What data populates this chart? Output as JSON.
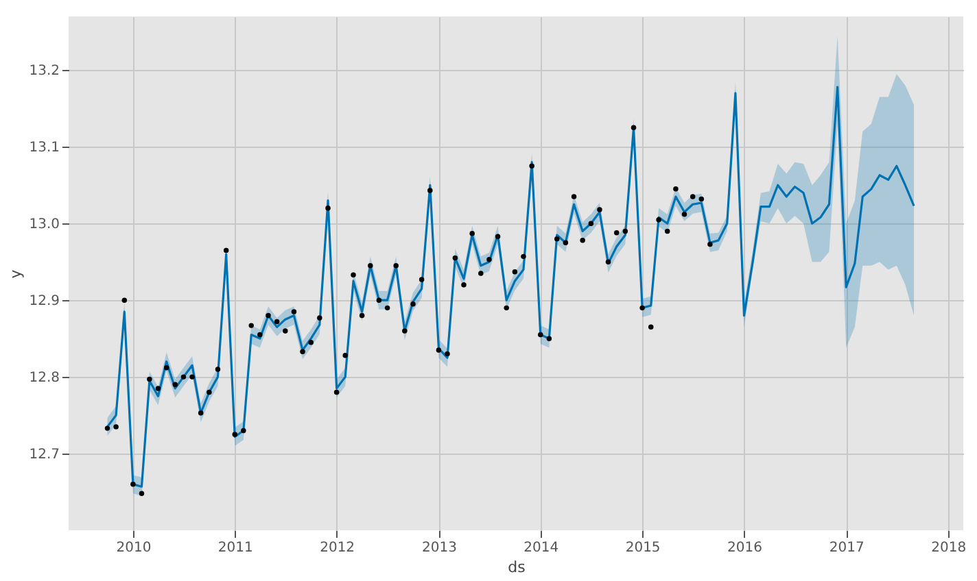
{
  "chart_data": {
    "type": "line",
    "xlabel": "ds",
    "ylabel": "y",
    "x": [
      "2009-10",
      "2009-11",
      "2009-12",
      "2010-01",
      "2010-02",
      "2010-03",
      "2010-04",
      "2010-05",
      "2010-06",
      "2010-07",
      "2010-08",
      "2010-09",
      "2010-10",
      "2010-11",
      "2010-12",
      "2011-01",
      "2011-02",
      "2011-03",
      "2011-04",
      "2011-05",
      "2011-06",
      "2011-07",
      "2011-08",
      "2011-09",
      "2011-10",
      "2011-11",
      "2011-12",
      "2012-01",
      "2012-02",
      "2012-03",
      "2012-04",
      "2012-05",
      "2012-06",
      "2012-07",
      "2012-08",
      "2012-09",
      "2012-10",
      "2012-11",
      "2012-12",
      "2013-01",
      "2013-02",
      "2013-03",
      "2013-04",
      "2013-05",
      "2013-06",
      "2013-07",
      "2013-08",
      "2013-09",
      "2013-10",
      "2013-11",
      "2013-12",
      "2014-01",
      "2014-02",
      "2014-03",
      "2014-04",
      "2014-05",
      "2014-06",
      "2014-07",
      "2014-08",
      "2014-09",
      "2014-10",
      "2014-11",
      "2014-12",
      "2015-01",
      "2015-02",
      "2015-03",
      "2015-04",
      "2015-05",
      "2015-06",
      "2015-07",
      "2015-08",
      "2015-09",
      "2015-10",
      "2015-11",
      "2015-12",
      "2016-01",
      "2016-02",
      "2016-03",
      "2016-04",
      "2016-05",
      "2016-06",
      "2016-07",
      "2016-08",
      "2016-09",
      "2016-10",
      "2016-11",
      "2016-12",
      "2017-01",
      "2017-02",
      "2017-03",
      "2017-04",
      "2017-05",
      "2017-06",
      "2017-07",
      "2017-08",
      "2017-09"
    ],
    "series": [
      {
        "color": "#0072b2",
        "values": [
          12.735,
          12.75,
          12.885,
          12.66,
          12.657,
          12.795,
          12.775,
          12.82,
          12.785,
          12.8,
          12.815,
          12.753,
          12.78,
          12.8,
          12.96,
          12.722,
          12.73,
          12.855,
          12.85,
          12.88,
          12.865,
          12.875,
          12.88,
          12.835,
          12.85,
          12.868,
          13.03,
          12.785,
          12.8,
          12.925,
          12.885,
          12.945,
          12.9,
          12.9,
          12.945,
          12.86,
          12.898,
          12.915,
          13.05,
          12.837,
          12.825,
          12.955,
          12.928,
          12.985,
          12.945,
          12.95,
          12.985,
          12.9,
          12.925,
          12.94,
          13.08,
          12.855,
          12.85,
          12.985,
          12.975,
          13.025,
          12.99,
          13.0,
          13.015,
          12.948,
          12.97,
          12.985,
          13.125,
          12.89,
          12.893,
          13.008,
          13.0,
          13.035,
          13.015,
          13.025,
          13.027,
          12.975,
          12.978,
          13.0,
          13.17,
          12.88,
          12.95,
          13.022,
          13.022,
          13.05,
          13.035,
          13.048,
          13.04,
          13.0,
          13.008,
          13.025,
          13.178,
          12.917,
          12.948,
          13.035,
          13.045,
          13.063,
          13.057,
          13.075,
          13.05,
          13.023
        ],
        "lower": [
          12.723,
          12.738,
          12.873,
          12.648,
          12.645,
          12.783,
          12.763,
          12.808,
          12.773,
          12.788,
          12.803,
          12.741,
          12.768,
          12.788,
          12.948,
          12.71,
          12.718,
          12.843,
          12.838,
          12.868,
          12.853,
          12.863,
          12.868,
          12.823,
          12.838,
          12.856,
          13.018,
          12.773,
          12.788,
          12.913,
          12.873,
          12.933,
          12.888,
          12.888,
          12.933,
          12.848,
          12.886,
          12.903,
          13.038,
          12.825,
          12.813,
          12.943,
          12.916,
          12.973,
          12.933,
          12.938,
          12.973,
          12.888,
          12.913,
          12.928,
          13.068,
          12.843,
          12.838,
          12.973,
          12.963,
          13.013,
          12.978,
          12.988,
          13.003,
          12.936,
          12.958,
          12.973,
          13.113,
          12.878,
          12.881,
          12.996,
          12.988,
          13.023,
          13.003,
          13.013,
          13.015,
          12.963,
          12.965,
          12.99,
          13.155,
          12.865,
          12.94,
          13.003,
          13.0,
          13.02,
          13.0,
          13.01,
          13.0,
          12.95,
          12.95,
          12.963,
          13.13,
          12.838,
          12.865,
          12.945,
          12.945,
          12.95,
          12.94,
          12.945,
          12.92,
          12.88
        ],
        "upper": [
          12.747,
          12.762,
          12.897,
          12.672,
          12.669,
          12.807,
          12.787,
          12.832,
          12.797,
          12.812,
          12.827,
          12.765,
          12.792,
          12.812,
          12.972,
          12.734,
          12.742,
          12.867,
          12.862,
          12.892,
          12.877,
          12.887,
          12.892,
          12.847,
          12.862,
          12.88,
          13.042,
          12.797,
          12.812,
          12.937,
          12.897,
          12.957,
          12.912,
          12.912,
          12.957,
          12.872,
          12.91,
          12.927,
          13.062,
          12.849,
          12.837,
          12.967,
          12.94,
          12.997,
          12.957,
          12.962,
          12.997,
          12.912,
          12.937,
          12.952,
          13.092,
          12.867,
          12.862,
          12.997,
          12.987,
          13.037,
          13.002,
          13.012,
          13.027,
          12.96,
          12.982,
          12.997,
          13.137,
          12.902,
          12.905,
          13.02,
          13.012,
          13.047,
          13.027,
          13.037,
          13.039,
          12.987,
          12.988,
          13.01,
          13.185,
          12.895,
          12.965,
          13.04,
          13.042,
          13.078,
          13.065,
          13.08,
          13.078,
          13.05,
          13.063,
          13.08,
          13.245,
          13.0,
          13.03,
          13.12,
          13.13,
          13.165,
          13.165,
          13.195,
          13.18,
          13.155
        ]
      },
      {
        "type": "scatter",
        "color": "#000000",
        "marker": "circle",
        "values": [
          12.733,
          12.735,
          12.9,
          12.66,
          12.648,
          12.797,
          12.785,
          12.812,
          12.79,
          12.8,
          12.8,
          12.753,
          12.78,
          12.81,
          12.965,
          12.725,
          12.73,
          12.867,
          12.855,
          12.88,
          12.872,
          12.86,
          12.885,
          12.833,
          12.845,
          12.877,
          13.02,
          12.78,
          12.828,
          12.933,
          12.88,
          12.945,
          12.9,
          12.89,
          12.945,
          12.86,
          12.895,
          12.927,
          13.043,
          12.835,
          12.83,
          12.955,
          12.92,
          12.987,
          12.935,
          12.953,
          12.983,
          12.89,
          12.937,
          12.957,
          13.075,
          12.855,
          12.85,
          12.98,
          12.975,
          13.035,
          12.978,
          13.0,
          13.018,
          12.95,
          12.988,
          12.99,
          13.125,
          12.89,
          12.865,
          13.005,
          12.99,
          13.045,
          13.012,
          13.035,
          13.032,
          12.973,
          null,
          null,
          null,
          null,
          null,
          null,
          null,
          null,
          null,
          null,
          null,
          null,
          null,
          null,
          null,
          null,
          null,
          null,
          null,
          null,
          null,
          null,
          null,
          null
        ]
      }
    ],
    "xlim": [
      "2009-05-15",
      "2018-02-25"
    ],
    "xticks": [
      {
        "value": "2010",
        "label": "2010"
      },
      {
        "value": "2011",
        "label": "2011"
      },
      {
        "value": "2012",
        "label": "2012"
      },
      {
        "value": "2013",
        "label": "2013"
      },
      {
        "value": "2014",
        "label": "2014"
      },
      {
        "value": "2015",
        "label": "2015"
      },
      {
        "value": "2016",
        "label": "2016"
      },
      {
        "value": "2017",
        "label": "2017"
      },
      {
        "value": "2018",
        "label": "2018"
      }
    ],
    "ylim": [
      12.6,
      13.27
    ],
    "yticks": [
      12.7,
      12.8,
      12.9,
      {
        "value": 13.0,
        "label": "13.0"
      },
      13.1,
      13.2
    ],
    "grid": true
  }
}
